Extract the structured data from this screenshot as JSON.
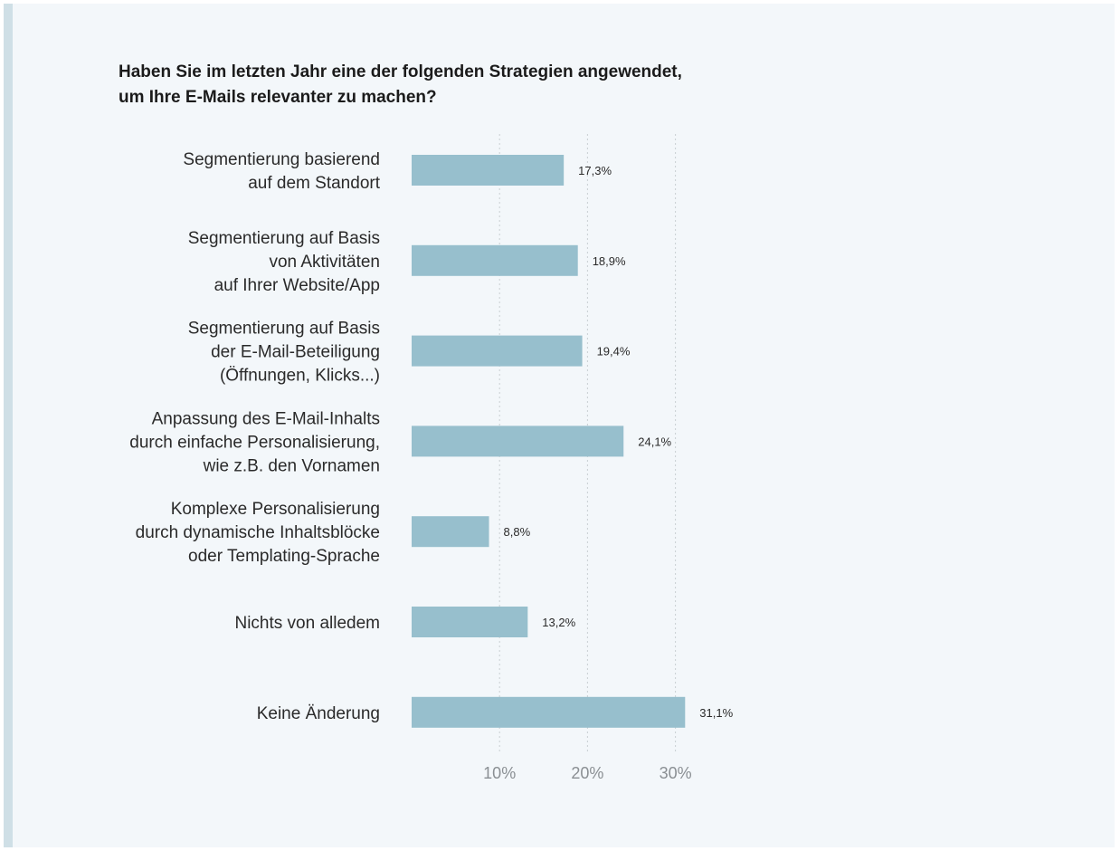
{
  "chart_data": {
    "type": "bar",
    "orientation": "horizontal",
    "title_lines": [
      "Haben Sie im letzten Jahr eine der folgenden Strategien angewendet,",
      "um Ihre E-Mails relevanter zu machen?"
    ],
    "categories": [
      [
        "Segmentierung basierend",
        "auf dem Standort"
      ],
      [
        "Segmentierung auf Basis",
        "von Aktivitäten",
        "auf Ihrer Website/App"
      ],
      [
        "Segmentierung auf Basis",
        "der E-Mail-Beteiligung",
        "(Öffnungen, Klicks...)"
      ],
      [
        "Anpassung des E-Mail-Inhalts",
        "durch einfache Personalisierung,",
        "wie z.B. den Vornamen"
      ],
      [
        "Komplexe Personalisierung",
        "durch dynamische Inhaltsblöcke",
        "oder Templating-Sprache"
      ],
      [
        "Nichts von alledem"
      ],
      [
        "Keine Änderung"
      ]
    ],
    "values": [
      17.3,
      18.9,
      19.4,
      24.1,
      8.8,
      13.2,
      31.1
    ],
    "value_labels": [
      "17,3%",
      "18,9%",
      "19,4%",
      "24,1%",
      "8,8%",
      "13,2%",
      "31,1%"
    ],
    "xlim": [
      0,
      40
    ],
    "xticks": [
      10,
      20,
      30
    ],
    "xtick_labels": [
      "10%",
      "20%",
      "30%"
    ],
    "grid": "vertical-dotted",
    "bar_color": "#97bfcd",
    "xlabel": "",
    "ylabel": ""
  }
}
